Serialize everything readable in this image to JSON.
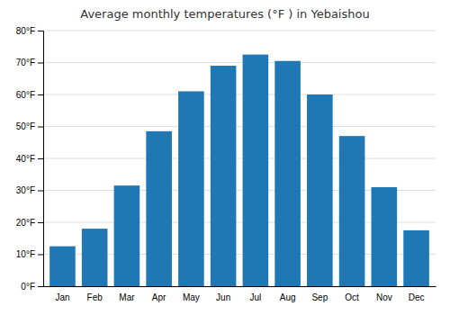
{
  "chart_data": {
    "type": "bar",
    "title": "Average monthly temperatures (°F ) in Yebaishou",
    "categories": [
      "Jan",
      "Feb",
      "Mar",
      "Apr",
      "May",
      "Jun",
      "Jul",
      "Aug",
      "Sep",
      "Oct",
      "Nov",
      "Dec"
    ],
    "values": [
      12.5,
      18,
      31.5,
      48.5,
      61,
      69,
      72.5,
      70.5,
      60,
      47,
      31,
      17.5
    ],
    "ylim": [
      0,
      80
    ],
    "yticks": [
      {
        "value": 0,
        "label": "0°F"
      },
      {
        "value": 10,
        "label": "10°F"
      },
      {
        "value": 20,
        "label": "20°F"
      },
      {
        "value": 30,
        "label": "30°F"
      },
      {
        "value": 40,
        "label": "40°F"
      },
      {
        "value": 50,
        "label": "50°F"
      },
      {
        "value": 60,
        "label": "60°F"
      },
      {
        "value": 70,
        "label": "70°F"
      },
      {
        "value": 80,
        "label": "80°F"
      }
    ],
    "grid": true
  }
}
